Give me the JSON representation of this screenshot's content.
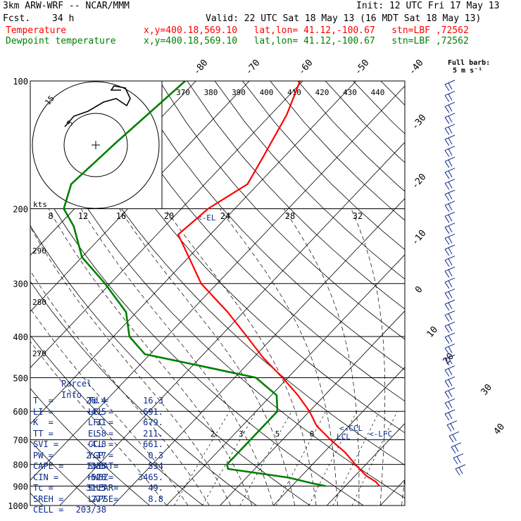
{
  "header": {
    "model": "3km ARW-WRF -- NCAR/MMM",
    "init": "Init: 12 UTC Fri 17 May 13",
    "fcst_label": "Fcst.",
    "fcst_value": "34 h",
    "valid": "Valid: 22 UTC Sat 18 May 13 (16 MDT Sat 18 May 13)",
    "temp_label": "Temperature",
    "dew_label": "Dewpoint temperature",
    "location": "x,y=400.18,569.10   lat,lon= 41.12,-100.67   stn=LBF ,72562"
  },
  "colors": {
    "temperature": "#ff0000",
    "dewpoint": "#008000",
    "text": "#000000",
    "parcel": "#0a2a8a",
    "hodo": "#000000"
  },
  "chart_data": {
    "type": "skew-t",
    "pressure_levels": [
      100,
      200,
      300,
      400,
      500,
      600,
      700,
      800,
      900,
      1000
    ],
    "pressure_labels": [
      "100",
      "200",
      "300",
      "400",
      "500",
      "600",
      "700",
      "800",
      "900",
      "1000"
    ],
    "isotherm_labels": [
      "-80",
      "-70",
      "-60",
      "-50",
      "-40",
      "-30",
      "-20",
      "-10",
      "0",
      "10",
      "20",
      "30",
      "40"
    ],
    "theta_labels": [
      "370",
      "380",
      "390",
      "400",
      "410",
      "420",
      "430",
      "440"
    ],
    "theta_dry_labels": [
      "290",
      "280",
      "270"
    ],
    "hodo_speed_labels": [
      "8",
      "12",
      "16",
      "20",
      "24",
      "28",
      "32"
    ],
    "hodo_ring_labels": [
      "5",
      "15"
    ],
    "hodo_units": "kts",
    "mixing_ratio_labels": [
      "2",
      "3",
      "5",
      "8"
    ],
    "barb_note_line1": "Full barb:",
    "barb_note_line2": "5 m s⁻¹",
    "temperature": [
      [
        100,
        -60.5
      ],
      [
        120,
        -57
      ],
      [
        150,
        -54
      ],
      [
        175,
        -52
      ],
      [
        200,
        -55
      ],
      [
        230,
        -56
      ],
      [
        260,
        -50
      ],
      [
        300,
        -43
      ],
      [
        350,
        -33
      ],
      [
        400,
        -25
      ],
      [
        450,
        -18
      ],
      [
        500,
        -11
      ],
      [
        550,
        -5
      ],
      [
        600,
        0
      ],
      [
        650,
        4
      ],
      [
        700,
        9
      ],
      [
        750,
        14
      ],
      [
        800,
        18
      ],
      [
        850,
        22
      ],
      [
        880,
        25
      ],
      [
        900,
        26.4
      ]
    ],
    "dewpoint": [
      [
        100,
        -82
      ],
      [
        140,
        -84
      ],
      [
        175,
        -85
      ],
      [
        200,
        -82
      ],
      [
        220,
        -77
      ],
      [
        260,
        -70
      ],
      [
        300,
        -61
      ],
      [
        350,
        -52
      ],
      [
        400,
        -47
      ],
      [
        440,
        -41
      ],
      [
        470,
        -28
      ],
      [
        500,
        -16
      ],
      [
        550,
        -9
      ],
      [
        600,
        -6
      ],
      [
        700,
        -6
      ],
      [
        800,
        -6
      ],
      [
        820,
        -5
      ],
      [
        860,
        8
      ],
      [
        885,
        13
      ],
      [
        900,
        16.3
      ]
    ],
    "markers": {
      "el": "<-EL",
      "ccl": "<-CCL",
      "lfc": "<-LFC",
      "lcl": "LCL"
    },
    "wind_barbs_count": 36,
    "parcel_info": {
      "title": "Parcel Info",
      "rows": [
        [
          "T  =",
          "26.4",
          "Td =",
          "16.3"
        ],
        [
          "LI =",
          "-4.5",
          "LCL =",
          "691."
        ],
        [
          "K  =",
          "31",
          "LFC =",
          "679."
        ],
        [
          "TT =",
          "58",
          "EL  =",
          "211."
        ],
        [
          "SVI =",
          "-4.8",
          "CCL =",
          "661."
        ],
        [
          "PW =",
          "2.17",
          "YGP =",
          "0.3"
        ],
        [
          "CAPE =",
          "1338",
          "SWEAT=",
          "534"
        ],
        [
          "CIN =",
          "-528",
          "HWBZ=",
          "3465."
        ],
        [
          "Tc =",
          "31.5",
          "SHEAR=",
          "49."
        ],
        [
          "SREH =",
          "277",
          "LAPSE=",
          "8.8"
        ],
        [
          "CELL =",
          "203/38",
          "",
          ""
        ]
      ]
    }
  }
}
